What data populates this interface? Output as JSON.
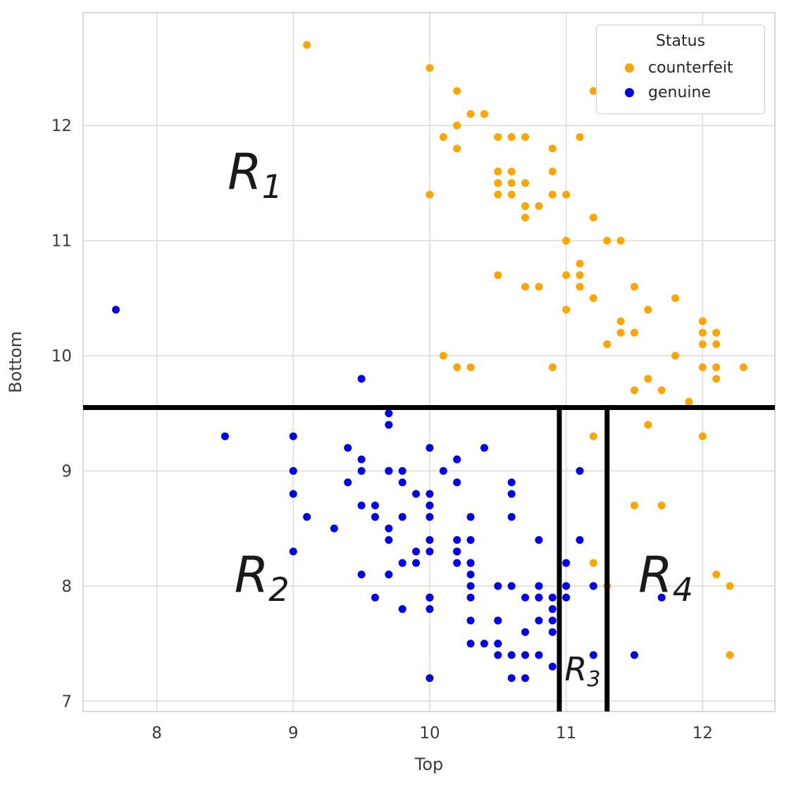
{
  "chart_data": {
    "type": "scatter",
    "title": "",
    "xlabel": "Top",
    "ylabel": "Bottom",
    "xlim": [
      7.46,
      12.53
    ],
    "ylim": [
      6.91,
      12.98
    ],
    "xticks": [
      8,
      9,
      10,
      11,
      12
    ],
    "xtick_labels": [
      "8",
      "9",
      "10",
      "11",
      "12"
    ],
    "yticks": [
      7,
      8,
      9,
      10,
      11,
      12
    ],
    "ytick_labels": [
      "7",
      "8",
      "9",
      "10",
      "11",
      "12"
    ],
    "grid": true,
    "style": {
      "grid_color": "#dcdcdc",
      "spine_color": "#cfcfcf",
      "tick_color": "#3b3b3b",
      "annotation_color": "#1a1a1a",
      "boundary_color": "#000000"
    },
    "legend": {
      "title": "Status",
      "position": "upper right",
      "entries": [
        {
          "label": "counterfeit",
          "color": "#FFA500"
        },
        {
          "label": "genuine",
          "color": "#0000EE"
        }
      ]
    },
    "boundaries": {
      "hline_y": 9.55,
      "vlines_x": [
        10.95,
        11.3
      ],
      "width": 7
    },
    "annotations": [
      {
        "name": "region-label-r1",
        "base": "R",
        "sub": "1",
        "x": 8.72,
        "y": 11.45,
        "size": 70
      },
      {
        "name": "region-label-r2",
        "base": "R",
        "sub": "2",
        "x": 8.77,
        "y": 7.95,
        "size": 70
      },
      {
        "name": "region-label-r3",
        "base": "R",
        "sub": "3",
        "x": 11.12,
        "y": 7.18,
        "size": 46
      },
      {
        "name": "region-label-r4",
        "base": "R",
        "sub": "4",
        "x": 11.73,
        "y": 7.95,
        "size": 70
      }
    ],
    "series": [
      {
        "name": "counterfeit",
        "color": "#FFA500",
        "points": [
          [
            9.1,
            12.7
          ],
          [
            10.0,
            12.5
          ],
          [
            10.2,
            12.3
          ],
          [
            11.2,
            12.3
          ],
          [
            10.3,
            12.1
          ],
          [
            10.4,
            12.1
          ],
          [
            10.2,
            12.0
          ],
          [
            10.1,
            11.9
          ],
          [
            10.5,
            11.9
          ],
          [
            10.6,
            11.9
          ],
          [
            10.7,
            11.9
          ],
          [
            11.1,
            11.9
          ],
          [
            10.2,
            11.8
          ],
          [
            10.9,
            11.8
          ],
          [
            10.5,
            11.6
          ],
          [
            10.6,
            11.6
          ],
          [
            10.9,
            11.6
          ],
          [
            10.5,
            11.5
          ],
          [
            10.6,
            11.5
          ],
          [
            10.7,
            11.5
          ],
          [
            10.0,
            11.4
          ],
          [
            10.5,
            11.4
          ],
          [
            10.6,
            11.4
          ],
          [
            10.9,
            11.4
          ],
          [
            11.0,
            11.4
          ],
          [
            10.7,
            11.3
          ],
          [
            10.8,
            11.3
          ],
          [
            10.7,
            11.2
          ],
          [
            11.2,
            11.2
          ],
          [
            11.0,
            11.0
          ],
          [
            11.3,
            11.0
          ],
          [
            11.4,
            11.0
          ],
          [
            11.1,
            10.8
          ],
          [
            10.5,
            10.7
          ],
          [
            11.0,
            10.7
          ],
          [
            11.1,
            10.7
          ],
          [
            10.7,
            10.6
          ],
          [
            10.8,
            10.6
          ],
          [
            11.1,
            10.6
          ],
          [
            11.5,
            10.6
          ],
          [
            11.2,
            10.5
          ],
          [
            11.8,
            10.5
          ],
          [
            11.0,
            10.4
          ],
          [
            11.6,
            10.4
          ],
          [
            11.4,
            10.3
          ],
          [
            12.0,
            10.3
          ],
          [
            11.4,
            10.2
          ],
          [
            11.5,
            10.2
          ],
          [
            12.0,
            10.2
          ],
          [
            12.1,
            10.2
          ],
          [
            11.3,
            10.1
          ],
          [
            12.0,
            10.1
          ],
          [
            12.1,
            10.1
          ],
          [
            10.1,
            10.0
          ],
          [
            11.8,
            10.0
          ],
          [
            10.2,
            9.9
          ],
          [
            10.3,
            9.9
          ],
          [
            10.9,
            9.9
          ],
          [
            12.0,
            9.9
          ],
          [
            12.1,
            9.9
          ],
          [
            12.3,
            9.9
          ],
          [
            11.6,
            9.8
          ],
          [
            12.1,
            9.8
          ],
          [
            11.5,
            9.7
          ],
          [
            11.7,
            9.7
          ],
          [
            11.9,
            9.6
          ],
          [
            11.6,
            9.4
          ],
          [
            11.2,
            9.3
          ],
          [
            12.0,
            9.3
          ],
          [
            11.5,
            8.7
          ],
          [
            11.7,
            8.7
          ],
          [
            11.2,
            8.2
          ],
          [
            11.2,
            8.0
          ],
          [
            11.3,
            8.0
          ],
          [
            12.1,
            8.1
          ],
          [
            12.2,
            8.0
          ],
          [
            12.2,
            7.4
          ]
        ]
      },
      {
        "name": "genuine",
        "color": "#0000EE",
        "points": [
          [
            9.7,
            9.0
          ],
          [
            9.5,
            8.1
          ],
          [
            9.6,
            8.7
          ],
          [
            10.4,
            7.5
          ],
          [
            7.7,
            10.4
          ],
          [
            10.1,
            9.0
          ],
          [
            9.6,
            7.9
          ],
          [
            10.7,
            7.2
          ],
          [
            11.0,
            8.2
          ],
          [
            10.0,
            9.2
          ],
          [
            11.7,
            7.9
          ],
          [
            10.5,
            7.7
          ],
          [
            10.8,
            7.9
          ],
          [
            10.9,
            7.7
          ],
          [
            10.8,
            7.7
          ],
          [
            8.5,
            9.3
          ],
          [
            9.8,
            8.2
          ],
          [
            9.0,
            9.0
          ],
          [
            11.5,
            7.4
          ],
          [
            10.0,
            8.6
          ],
          [
            10.0,
            8.4
          ],
          [
            10.3,
            8.1
          ],
          [
            10.8,
            8.4
          ],
          [
            10.0,
            8.7
          ],
          [
            10.8,
            7.4
          ],
          [
            11.0,
            8.0
          ],
          [
            9.8,
            8.9
          ],
          [
            9.5,
            9.8
          ],
          [
            10.5,
            7.4
          ],
          [
            9.0,
            8.3
          ],
          [
            10.7,
            7.9
          ],
          [
            9.1,
            8.6
          ],
          [
            10.5,
            7.7
          ],
          [
            10.3,
            8.4
          ],
          [
            10.6,
            8.9
          ],
          [
            9.7,
            9.4
          ],
          [
            9.7,
            8.4
          ],
          [
            10.0,
            7.9
          ],
          [
            9.3,
            8.5
          ],
          [
            9.7,
            8.1
          ],
          [
            9.4,
            8.9
          ],
          [
            9.9,
            8.8
          ],
          [
            9.0,
            9.3
          ],
          [
            9.8,
            9.0
          ],
          [
            10.2,
            8.2
          ],
          [
            10.2,
            8.3
          ],
          [
            10.2,
            8.3
          ],
          [
            10.9,
            7.3
          ],
          [
            10.3,
            7.9
          ],
          [
            9.8,
            7.8
          ],
          [
            10.0,
            7.2
          ],
          [
            9.7,
            9.5
          ],
          [
            10.9,
            7.8
          ],
          [
            10.9,
            7.6
          ],
          [
            10.0,
            7.9
          ],
          [
            9.4,
            9.2
          ],
          [
            10.4,
            9.2
          ],
          [
            9.0,
            8.8
          ],
          [
            11.0,
            7.9
          ],
          [
            10.3,
            8.2
          ],
          [
            9.9,
            8.3
          ],
          [
            10.5,
            7.5
          ],
          [
            10.6,
            8.0
          ],
          [
            10.8,
            8.0
          ],
          [
            10.6,
            8.6
          ],
          [
            10.6,
            8.8
          ],
          [
            10.3,
            7.7
          ],
          [
            9.5,
            9.1
          ],
          [
            9.8,
            8.6
          ],
          [
            11.2,
            8.0
          ],
          [
            11.1,
            8.4
          ],
          [
            10.3,
            8.2
          ],
          [
            10.0,
            8.7
          ],
          [
            10.5,
            7.5
          ],
          [
            10.6,
            7.2
          ],
          [
            10.7,
            7.6
          ],
          [
            10.0,
            8.8
          ],
          [
            10.6,
            7.4
          ],
          [
            10.9,
            7.9
          ],
          [
            10.0,
            7.9
          ],
          [
            10.3,
            8.6
          ],
          [
            10.3,
            7.5
          ],
          [
            9.7,
            9.0
          ],
          [
            10.8,
            7.9
          ],
          [
            11.1,
            9.0
          ],
          [
            10.2,
            8.9
          ],
          [
            9.5,
            8.7
          ],
          [
            10.2,
            8.4
          ],
          [
            11.2,
            7.4
          ],
          [
            10.5,
            8.0
          ],
          [
            9.6,
            8.6
          ],
          [
            9.7,
            8.5
          ],
          [
            9.9,
            8.2
          ],
          [
            10.7,
            7.4
          ],
          [
            10.0,
            8.3
          ],
          [
            9.5,
            9.0
          ],
          [
            10.2,
            9.1
          ],
          [
            10.3,
            8.0
          ],
          [
            10.2,
            9.1
          ],
          [
            10.0,
            7.8
          ]
        ]
      }
    ]
  }
}
